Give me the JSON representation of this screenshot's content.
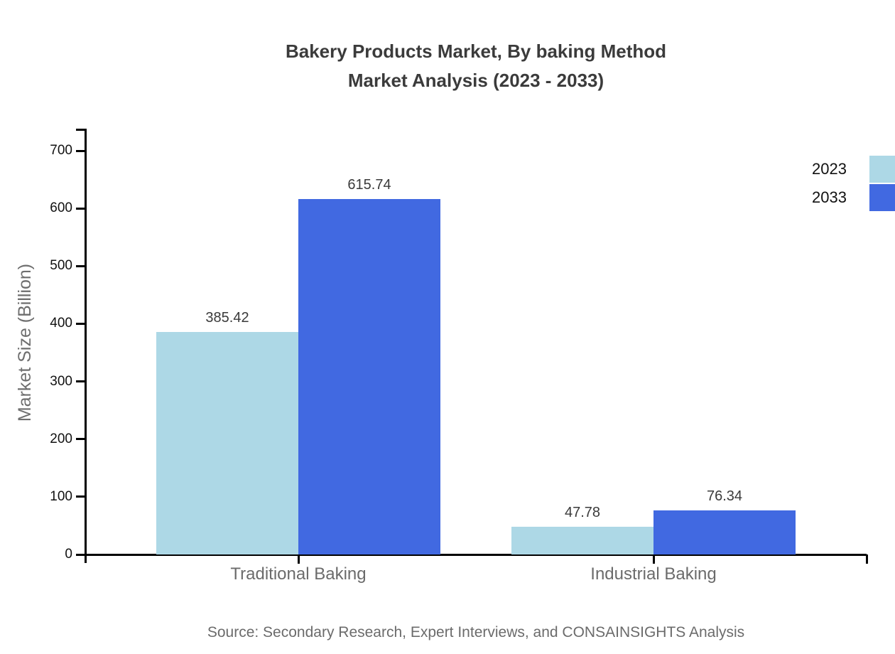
{
  "title": {
    "line1": "Bakery Products Market, By baking Method",
    "line2": "Market Analysis (2023 - 2033)"
  },
  "chart_data": {
    "type": "bar",
    "categories": [
      "Traditional Baking",
      "Industrial Baking"
    ],
    "series": [
      {
        "name": "2023",
        "color": "#ADD8E6",
        "values": [
          385.42,
          47.78
        ]
      },
      {
        "name": "2033",
        "color": "#4169E1",
        "values": [
          615.74,
          76.34
        ]
      }
    ],
    "value_labels": [
      [
        "385.42",
        "615.74"
      ],
      [
        "47.78",
        "76.34"
      ]
    ],
    "title": "Bakery Products Market, By baking Method Market Analysis (2023 - 2033)",
    "xlabel": "",
    "ylabel": "Market Size (Billion)",
    "ylim": [
      0,
      700
    ],
    "ytick_step": 100,
    "ytick_labels": [
      "0",
      "100",
      "200",
      "300",
      "400",
      "500",
      "600",
      "700"
    ],
    "grid": false,
    "legend_position": "top-right"
  },
  "source": "Source: Secondary Research, Expert Interviews, and CONSAINSIGHTS Analysis",
  "colors": {
    "background": "#ffffff",
    "axis": "#000000",
    "title_text": "#3b3b3b",
    "tick_label_text": "#111111",
    "category_label_text": "#6b6b6b",
    "value_label_text": "#3a3a3a",
    "y_axis_title_text": "#6e6e6e",
    "source_text": "#6b6b6b",
    "series_2023": "#ADD8E6",
    "series_2033": "#4169E1"
  }
}
